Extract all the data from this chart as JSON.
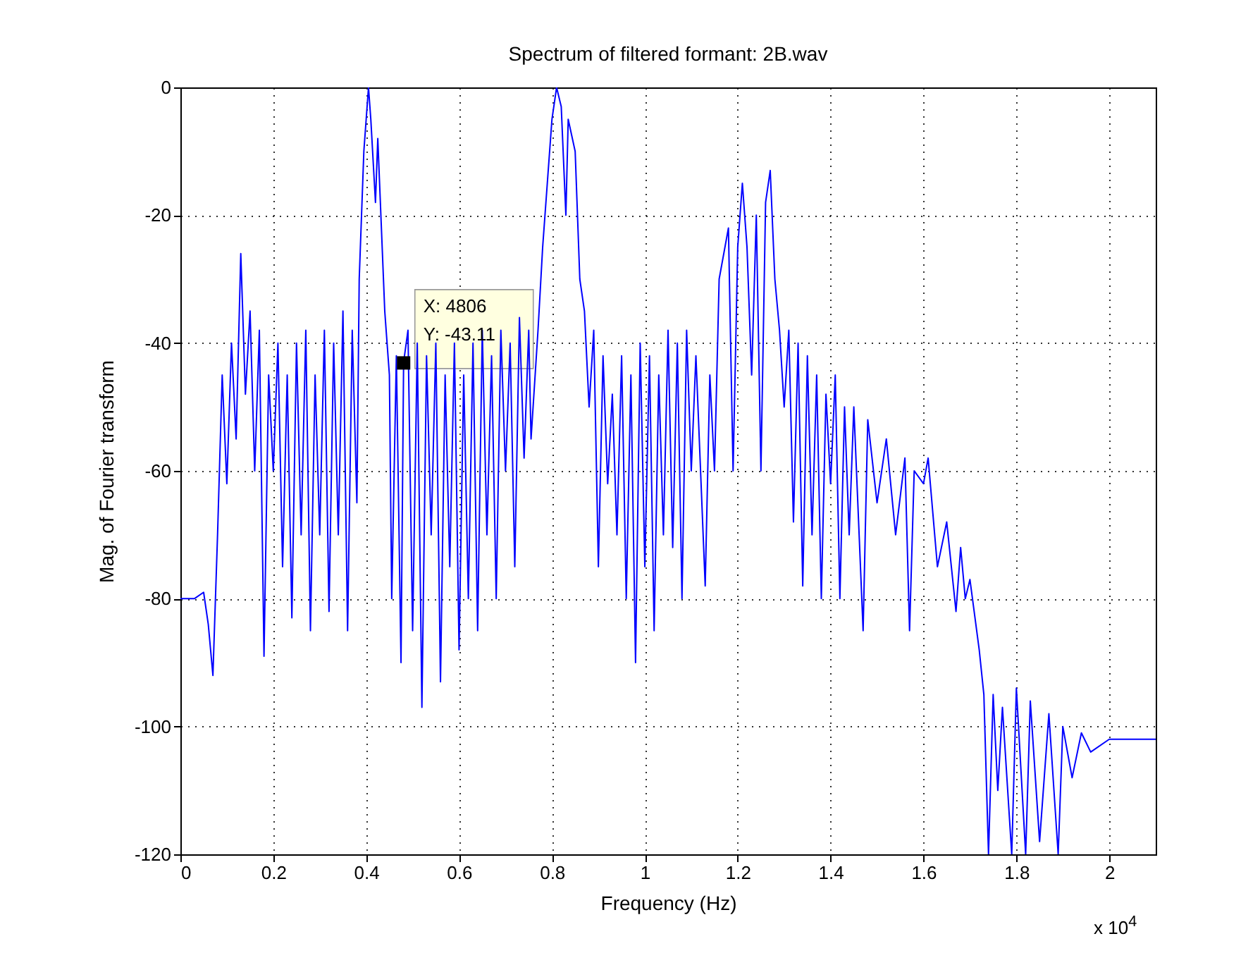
{
  "chart_data": {
    "type": "line",
    "title": "Spectrum of filtered formant: 2B.wav",
    "xlabel": "Frequency (Hz)",
    "ylabel": "Mag. of Fourier transform",
    "xlim": [
      0,
      2.1
    ],
    "ylim": [
      -120,
      0
    ],
    "xticks": [
      0,
      0.2,
      0.4,
      0.6,
      0.8,
      1,
      1.2,
      1.4,
      1.6,
      1.8,
      2
    ],
    "yticks": [
      -120,
      -100,
      -80,
      -60,
      -40,
      -20,
      0
    ],
    "grid": true,
    "line_style": "solid",
    "marker": "none",
    "annotations": [
      "x 10$^{4}$",
      {
        "text": "X: 4806\nY: -43.11",
        "x": 0.4806,
        "y": -43.11
      }
    ],
    "x": [
      0,
      0.03,
      0.05,
      0.06,
      0.07,
      0.08,
      0.09,
      0.1,
      0.11,
      0.12,
      0.13,
      0.14,
      0.15,
      0.16,
      0.17,
      0.18,
      0.19,
      0.2,
      0.21,
      0.22,
      0.23,
      0.24,
      0.25,
      0.26,
      0.27,
      0.28,
      0.29,
      0.3,
      0.31,
      0.32,
      0.33,
      0.34,
      0.35,
      0.36,
      0.37,
      0.38,
      0.385,
      0.395,
      0.405,
      0.41,
      0.42,
      0.425,
      0.44,
      0.45,
      0.455,
      0.465,
      0.475,
      0.4806,
      0.49,
      0.5,
      0.51,
      0.52,
      0.53,
      0.54,
      0.55,
      0.56,
      0.57,
      0.58,
      0.59,
      0.6,
      0.61,
      0.62,
      0.63,
      0.64,
      0.65,
      0.66,
      0.67,
      0.68,
      0.69,
      0.7,
      0.71,
      0.72,
      0.73,
      0.74,
      0.75,
      0.755,
      0.77,
      0.78,
      0.79,
      0.8,
      0.81,
      0.82,
      0.83,
      0.835,
      0.85,
      0.86,
      0.87,
      0.88,
      0.89,
      0.9,
      0.91,
      0.92,
      0.93,
      0.94,
      0.95,
      0.96,
      0.97,
      0.98,
      0.99,
      1,
      1.01,
      1.02,
      1.03,
      1.04,
      1.05,
      1.06,
      1.07,
      1.08,
      1.09,
      1.1,
      1.11,
      1.13,
      1.14,
      1.15,
      1.16,
      1.18,
      1.19,
      1.2,
      1.21,
      1.22,
      1.23,
      1.24,
      1.25,
      1.26,
      1.27,
      1.28,
      1.29,
      1.3,
      1.31,
      1.32,
      1.33,
      1.34,
      1.35,
      1.36,
      1.37,
      1.38,
      1.39,
      1.4,
      1.41,
      1.42,
      1.43,
      1.44,
      1.45,
      1.47,
      1.48,
      1.5,
      1.52,
      1.54,
      1.56,
      1.57,
      1.58,
      1.6,
      1.61,
      1.63,
      1.65,
      1.67,
      1.68,
      1.69,
      1.7,
      1.72,
      1.73,
      1.74,
      1.75,
      1.76,
      1.77,
      1.79,
      1.8,
      1.82,
      1.83,
      1.85,
      1.87,
      1.89,
      1.9,
      1.92,
      1.94,
      1.96,
      2,
      2.05,
      2.1
    ],
    "series": [
      {
        "color": "#0000ff",
        "values": [
          -80,
          -80,
          -79,
          -84,
          -92,
          -70,
          -45,
          -62,
          -40,
          -55,
          -26,
          -48,
          -35,
          -60,
          -38,
          -89,
          -45,
          -60,
          -40,
          -75,
          -45,
          -83,
          -40,
          -70,
          -38,
          -85,
          -45,
          -70,
          -38,
          -82,
          -40,
          -70,
          -35,
          -85,
          -38,
          -65,
          -30,
          -10,
          0,
          -5,
          -18,
          -8,
          -35,
          -45,
          -80,
          -42,
          -90,
          -43,
          -38,
          -85,
          -40,
          -97,
          -42,
          -70,
          -40,
          -93,
          -45,
          -75,
          -40,
          -88,
          -45,
          -80,
          -40,
          -85,
          -38,
          -70,
          -42,
          -80,
          -38,
          -60,
          -40,
          -75,
          -36,
          -58,
          -38,
          -55,
          -38,
          -25,
          -15,
          -5,
          0,
          -3,
          -20,
          -5,
          -10,
          -30,
          -35,
          -50,
          -38,
          -75,
          -42,
          -62,
          -48,
          -70,
          -42,
          -80,
          -45,
          -90,
          -40,
          -75,
          -42,
          -85,
          -45,
          -70,
          -38,
          -72,
          -40,
          -80,
          -38,
          -60,
          -42,
          -78,
          -45,
          -60,
          -30,
          -22,
          -60,
          -25,
          -15,
          -25,
          -45,
          -20,
          -60,
          -18,
          -13,
          -30,
          -38,
          -50,
          -38,
          -68,
          -40,
          -78,
          -42,
          -70,
          -45,
          -80,
          -48,
          -62,
          -45,
          -80,
          -50,
          -70,
          -50,
          -85,
          -52,
          -65,
          -55,
          -70,
          -58,
          -85,
          -60,
          -62,
          -58,
          -75,
          -68,
          -82,
          -72,
          -80,
          -77,
          -88,
          -95,
          -120,
          -95,
          -110,
          -97,
          -120,
          -94,
          -120,
          -96,
          -118,
          -98,
          -120,
          -100,
          -108,
          -101,
          -104,
          -102,
          -102,
          -102
        ]
      }
    ]
  }
}
